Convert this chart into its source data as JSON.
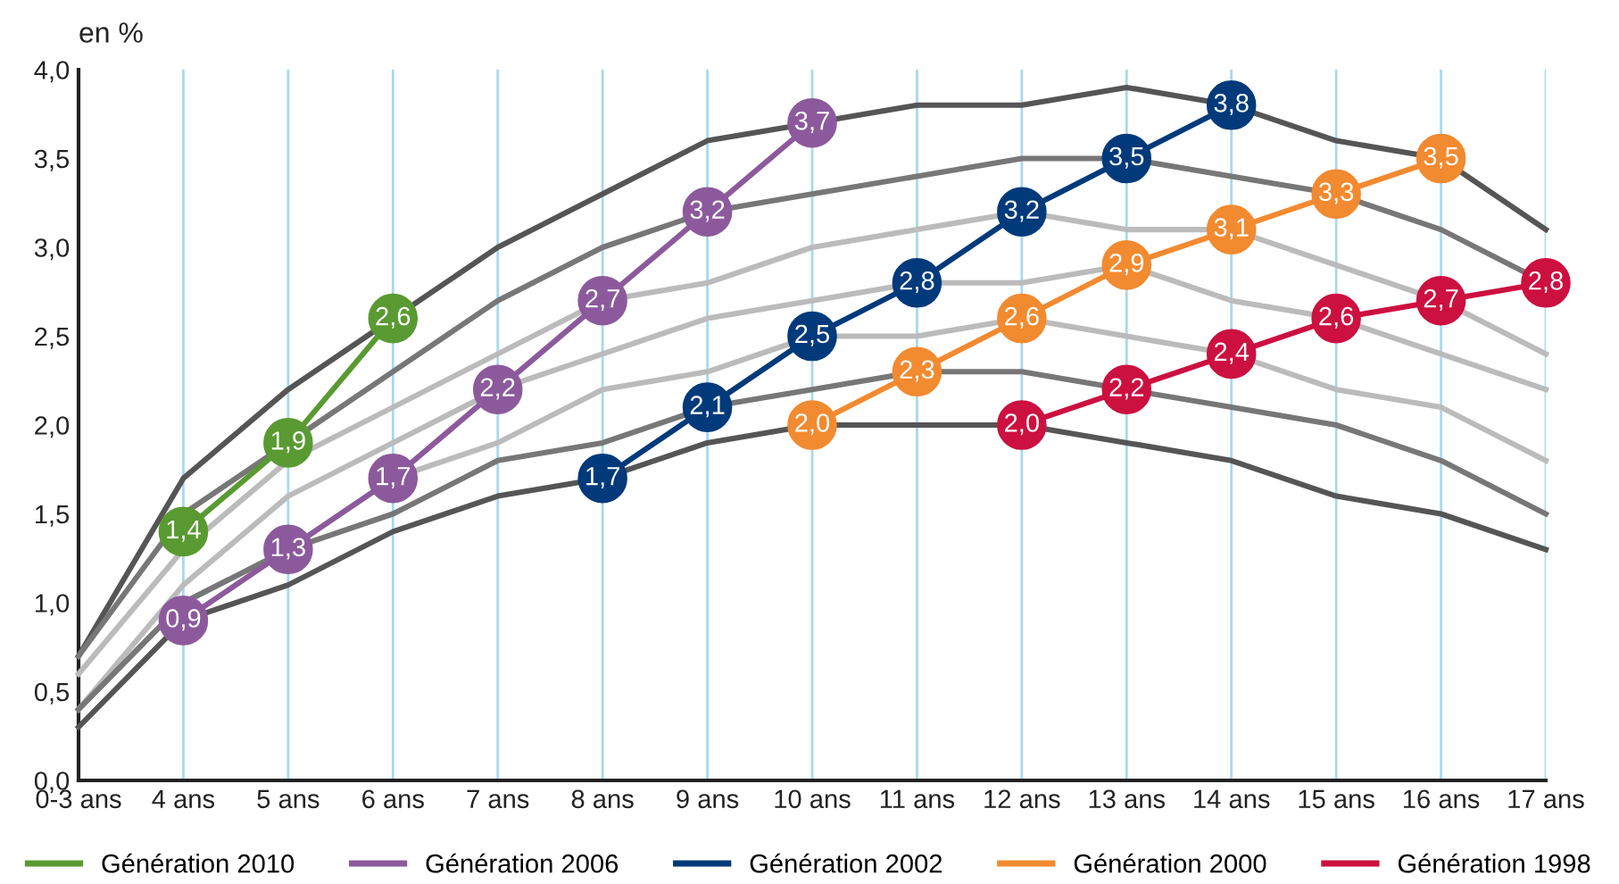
{
  "chart_data": {
    "type": "line",
    "ylabel": "en %",
    "categories": [
      "0-3 ans",
      "4 ans",
      "5 ans",
      "6 ans",
      "7 ans",
      "8 ans",
      "9 ans",
      "10 ans",
      "11 ans",
      "12 ans",
      "13 ans",
      "14 ans",
      "15 ans",
      "16 ans",
      "17 ans"
    ],
    "ylim": [
      0,
      4
    ],
    "yticks": [
      {
        "value": 0,
        "label": "0,0"
      },
      {
        "value": 0.5,
        "label": "0,5"
      },
      {
        "value": 1,
        "label": "1,0"
      },
      {
        "value": 1.5,
        "label": "1,5"
      },
      {
        "value": 2,
        "label": "2,0"
      },
      {
        "value": 2.5,
        "label": "2,5"
      },
      {
        "value": 3,
        "label": "3,0"
      },
      {
        "value": 3.5,
        "label": "3,5"
      },
      {
        "value": 4,
        "label": "4,0"
      }
    ],
    "grid": "x",
    "legend": "bottom",
    "series": [
      {
        "color": "#555555",
        "values": [
          0.7,
          1.7,
          2.2,
          2.6,
          3.0,
          3.3,
          3.6,
          3.7,
          3.8,
          3.8,
          3.9,
          3.8,
          3.6,
          3.5,
          3.1
        ]
      },
      {
        "color": "#777777",
        "values": [
          0.7,
          1.5,
          1.9,
          2.3,
          2.7,
          3.0,
          3.2,
          3.3,
          3.4,
          3.5,
          3.5,
          3.4,
          3.3,
          3.1,
          2.8
        ]
      },
      {
        "color": "#bbbbbb",
        "values": [
          0.6,
          1.3,
          1.8,
          2.1,
          2.4,
          2.7,
          2.8,
          3.0,
          3.1,
          3.2,
          3.1,
          3.1,
          2.9,
          2.7,
          2.4
        ]
      },
      {
        "color": "#bbbbbb",
        "values": [
          0.4,
          1.1,
          1.6,
          1.9,
          2.2,
          2.4,
          2.6,
          2.7,
          2.8,
          2.8,
          2.9,
          2.7,
          2.6,
          2.4,
          2.2
        ]
      },
      {
        "color": "#bbbbbb",
        "values": [
          0.4,
          1.0,
          1.3,
          1.7,
          1.9,
          2.2,
          2.3,
          2.5,
          2.5,
          2.6,
          2.5,
          2.4,
          2.2,
          2.1,
          1.8
        ]
      },
      {
        "color": "#777777",
        "values": [
          0.4,
          1.0,
          1.3,
          1.5,
          1.8,
          1.9,
          2.1,
          2.2,
          2.3,
          2.3,
          2.2,
          2.1,
          2.0,
          1.8,
          1.5
        ]
      },
      {
        "color": "#555555",
        "values": [
          0.3,
          0.9,
          1.1,
          1.4,
          1.6,
          1.7,
          1.9,
          2.0,
          2.0,
          2.0,
          1.9,
          1.8,
          1.6,
          1.5,
          1.3
        ]
      },
      {
        "name": "Génération 2010",
        "color": "#5a9a32",
        "marker": "circle",
        "values": [
          null,
          1.4,
          1.9,
          2.6,
          null,
          null,
          null,
          null,
          null,
          null,
          null,
          null,
          null,
          null,
          null
        ],
        "value_labels": [
          null,
          "1,4",
          "1,9",
          "2,6",
          null,
          null,
          null,
          null,
          null,
          null,
          null,
          null,
          null,
          null,
          null
        ]
      },
      {
        "name": "Génération 2006",
        "color": "#8c5a9c",
        "marker": "circle",
        "values": [
          null,
          0.9,
          1.3,
          1.7,
          2.2,
          2.7,
          3.2,
          3.7,
          null,
          null,
          null,
          null,
          null,
          null,
          null
        ],
        "value_labels": [
          null,
          "0,9",
          "1,3",
          "1,7",
          "2,2",
          "2,7",
          "3,2",
          "3,7",
          null,
          null,
          null,
          null,
          null,
          null,
          null
        ]
      },
      {
        "name": "Génération 2002",
        "color": "#003a7a",
        "marker": "circle",
        "values": [
          null,
          null,
          null,
          null,
          null,
          1.7,
          2.1,
          2.5,
          2.8,
          3.2,
          3.5,
          3.8,
          null,
          null,
          null
        ],
        "value_labels": [
          null,
          null,
          null,
          null,
          null,
          "1,7",
          "2,1",
          "2,5",
          "2,8",
          "3,2",
          "3,5",
          "3,8",
          null,
          null,
          null
        ]
      },
      {
        "name": "Génération 2000",
        "color": "#f28a30",
        "marker": "circle",
        "values": [
          null,
          null,
          null,
          null,
          null,
          null,
          null,
          2.0,
          2.3,
          2.6,
          2.9,
          3.1,
          3.3,
          3.5,
          null
        ],
        "value_labels": [
          null,
          null,
          null,
          null,
          null,
          null,
          null,
          "2,0",
          "2,3",
          "2,6",
          "2,9",
          "3,1",
          "3,3",
          "3,5",
          null
        ]
      },
      {
        "name": "Génération 1998",
        "color": "#cc1040",
        "marker": "circle",
        "values": [
          null,
          null,
          null,
          null,
          null,
          null,
          null,
          null,
          null,
          2.0,
          2.2,
          2.4,
          2.6,
          2.7,
          2.8
        ],
        "value_labels": [
          null,
          null,
          null,
          null,
          null,
          null,
          null,
          null,
          null,
          "2,0",
          "2,2",
          "2,4",
          "2,6",
          "2,7",
          "2,8"
        ]
      }
    ]
  }
}
